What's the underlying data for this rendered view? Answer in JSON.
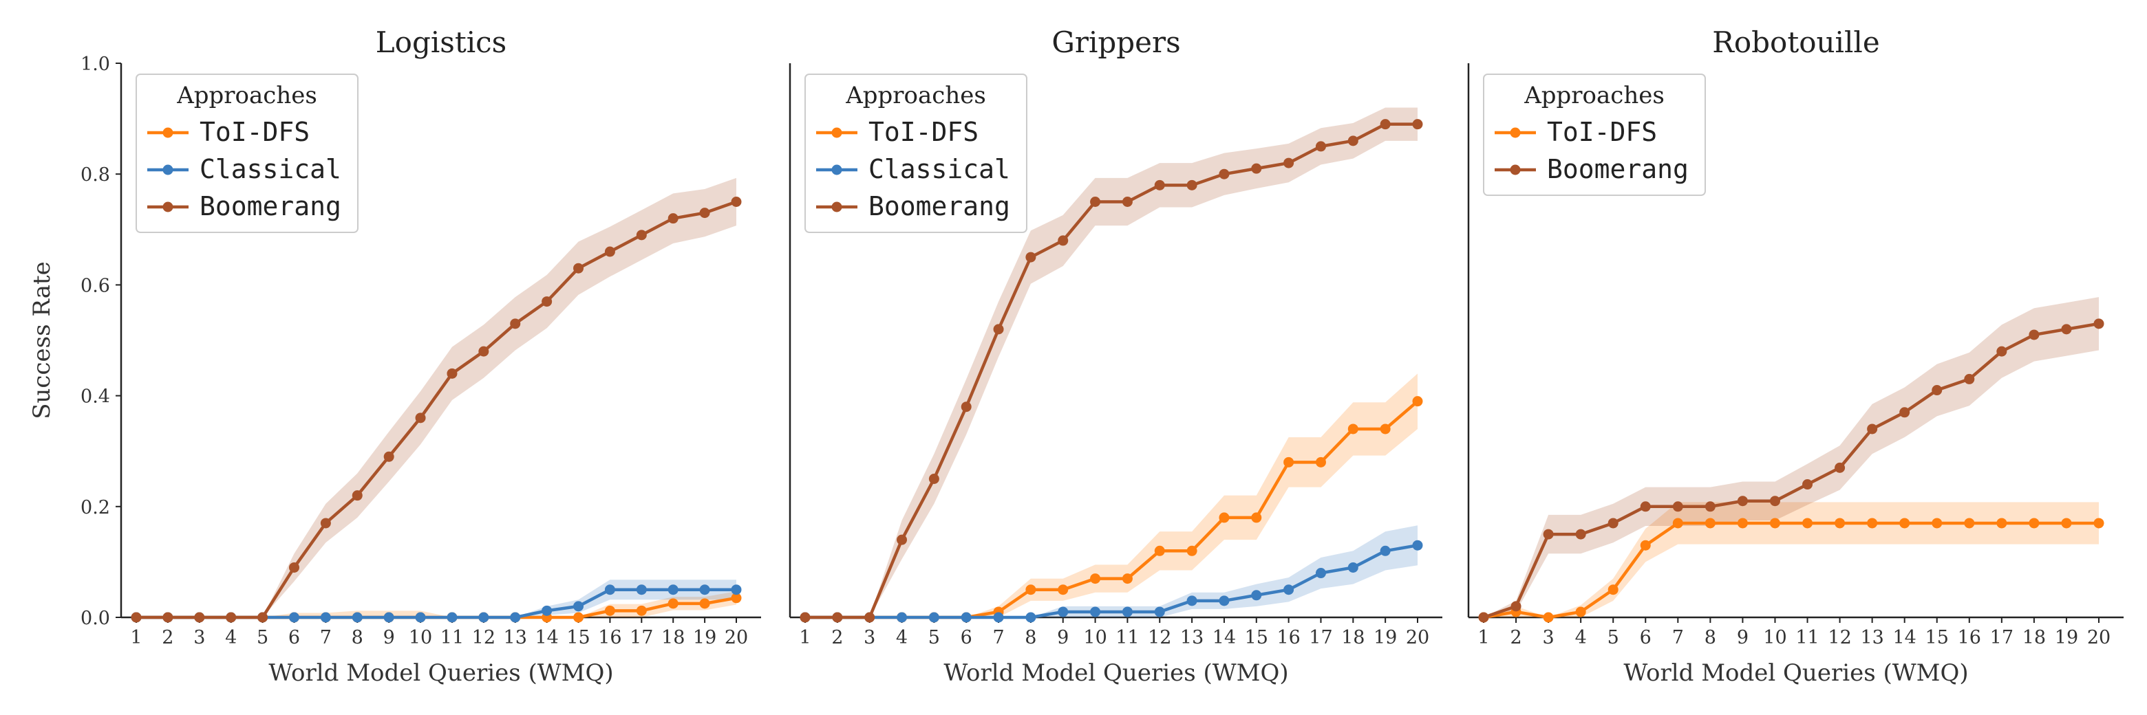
{
  "chart_data": [
    {
      "type": "line",
      "title": "Logistics",
      "xlabel": "World Model Queries (WMQ)",
      "ylabel": "Success Rate",
      "ylim": [
        0,
        1.0
      ],
      "yticks": [
        "0.0",
        "0.2",
        "0.4",
        "0.6",
        "0.8",
        "1.0"
      ],
      "x": [
        1,
        2,
        3,
        4,
        5,
        6,
        7,
        8,
        9,
        10,
        11,
        12,
        13,
        14,
        15,
        16,
        17,
        18,
        19,
        20
      ],
      "legend": {
        "title": "Approaches",
        "position": "top-left"
      },
      "series": [
        {
          "name": "ToI-DFS",
          "color": "#ff7f0e",
          "values": [
            0,
            0,
            0,
            0,
            0,
            0,
            0,
            0,
            0,
            0,
            0,
            0,
            0,
            0,
            0,
            0.012,
            0.012,
            0.025,
            0.025,
            0.035
          ],
          "band": [
            0,
            0,
            0,
            0,
            0,
            0.008,
            0.008,
            0.012,
            0.012,
            0.012,
            0,
            0,
            0,
            0,
            0,
            0.012,
            0.012,
            0.012,
            0.012,
            0.012
          ]
        },
        {
          "name": "Classical",
          "color": "#3b7dbf",
          "values": [
            0,
            0,
            0,
            0,
            0,
            0,
            0,
            0,
            0,
            0,
            0,
            0,
            0,
            0.012,
            0.02,
            0.05,
            0.05,
            0.05,
            0.05,
            0.05
          ],
          "band": [
            0,
            0,
            0,
            0,
            0,
            0,
            0,
            0,
            0,
            0,
            0,
            0,
            0,
            0.008,
            0.012,
            0.018,
            0.018,
            0.018,
            0.018,
            0.018
          ]
        },
        {
          "name": "Boomerang",
          "color": "#a9532a",
          "values": [
            0,
            0,
            0,
            0,
            0,
            0.09,
            0.17,
            0.22,
            0.29,
            0.36,
            0.44,
            0.48,
            0.53,
            0.57,
            0.63,
            0.66,
            0.69,
            0.72,
            0.73,
            0.75
          ],
          "band": [
            0,
            0,
            0,
            0,
            0,
            0.025,
            0.035,
            0.04,
            0.045,
            0.048,
            0.048,
            0.048,
            0.048,
            0.048,
            0.048,
            0.045,
            0.045,
            0.045,
            0.043,
            0.043
          ]
        }
      ]
    },
    {
      "type": "line",
      "title": "Grippers",
      "xlabel": "World Model Queries (WMQ)",
      "ylabel": "",
      "ylim": [
        0,
        1.0
      ],
      "x": [
        1,
        2,
        3,
        4,
        5,
        6,
        7,
        8,
        9,
        10,
        11,
        12,
        13,
        14,
        15,
        16,
        17,
        18,
        19,
        20
      ],
      "legend": {
        "title": "Approaches",
        "position": "top-left"
      },
      "series": [
        {
          "name": "ToI-DFS",
          "color": "#ff7f0e",
          "values": [
            0,
            0,
            0,
            0,
            0,
            0,
            0.01,
            0.05,
            0.05,
            0.07,
            0.07,
            0.12,
            0.12,
            0.18,
            0.18,
            0.28,
            0.28,
            0.34,
            0.34,
            0.39
          ],
          "band": [
            0,
            0,
            0,
            0,
            0,
            0,
            0.01,
            0.02,
            0.02,
            0.025,
            0.025,
            0.035,
            0.035,
            0.04,
            0.04,
            0.045,
            0.045,
            0.048,
            0.048,
            0.05
          ]
        },
        {
          "name": "Classical",
          "color": "#3b7dbf",
          "values": [
            0,
            0,
            0,
            0,
            0,
            0,
            0,
            0,
            0.01,
            0.01,
            0.01,
            0.01,
            0.03,
            0.03,
            0.04,
            0.05,
            0.08,
            0.09,
            0.12,
            0.13
          ],
          "band": [
            0,
            0,
            0,
            0,
            0,
            0,
            0,
            0,
            0.01,
            0.01,
            0.01,
            0.01,
            0.015,
            0.015,
            0.02,
            0.022,
            0.028,
            0.03,
            0.035,
            0.036
          ]
        },
        {
          "name": "Boomerang",
          "color": "#a9532a",
          "values": [
            0,
            0,
            0,
            0.14,
            0.25,
            0.38,
            0.52,
            0.65,
            0.68,
            0.75,
            0.75,
            0.78,
            0.78,
            0.8,
            0.81,
            0.82,
            0.85,
            0.86,
            0.89,
            0.89
          ],
          "band": [
            0,
            0,
            0,
            0.035,
            0.045,
            0.05,
            0.05,
            0.048,
            0.046,
            0.043,
            0.043,
            0.04,
            0.04,
            0.038,
            0.036,
            0.035,
            0.033,
            0.032,
            0.03,
            0.03
          ]
        }
      ]
    },
    {
      "type": "line",
      "title": "Robotouille",
      "xlabel": "World Model Queries (WMQ)",
      "ylabel": "",
      "ylim": [
        0,
        1.0
      ],
      "x": [
        1,
        2,
        3,
        4,
        5,
        6,
        7,
        8,
        9,
        10,
        11,
        12,
        13,
        14,
        15,
        16,
        17,
        18,
        19,
        20
      ],
      "legend": {
        "title": "Approaches",
        "position": "top-left"
      },
      "series": [
        {
          "name": "ToI-DFS",
          "color": "#ff7f0e",
          "values": [
            0,
            0.01,
            0,
            0.01,
            0.05,
            0.13,
            0.17,
            0.17,
            0.17,
            0.17,
            0.17,
            0.17,
            0.17,
            0.17,
            0.17,
            0.17,
            0.17,
            0.17,
            0.17,
            0.17
          ],
          "band": [
            0,
            0.01,
            0,
            0.012,
            0.02,
            0.03,
            0.038,
            0.038,
            0.038,
            0.038,
            0.038,
            0.038,
            0.038,
            0.038,
            0.038,
            0.038,
            0.038,
            0.038,
            0.038,
            0.038
          ]
        },
        {
          "name": "Boomerang",
          "color": "#a9532a",
          "values": [
            0,
            0.02,
            0.15,
            0.15,
            0.17,
            0.2,
            0.2,
            0.2,
            0.21,
            0.21,
            0.24,
            0.27,
            0.34,
            0.37,
            0.41,
            0.43,
            0.48,
            0.51,
            0.52,
            0.53
          ],
          "band": [
            0,
            0.01,
            0.035,
            0.035,
            0.035,
            0.035,
            0.035,
            0.035,
            0.035,
            0.035,
            0.037,
            0.04,
            0.045,
            0.045,
            0.047,
            0.048,
            0.048,
            0.048,
            0.048,
            0.048
          ]
        }
      ]
    }
  ]
}
